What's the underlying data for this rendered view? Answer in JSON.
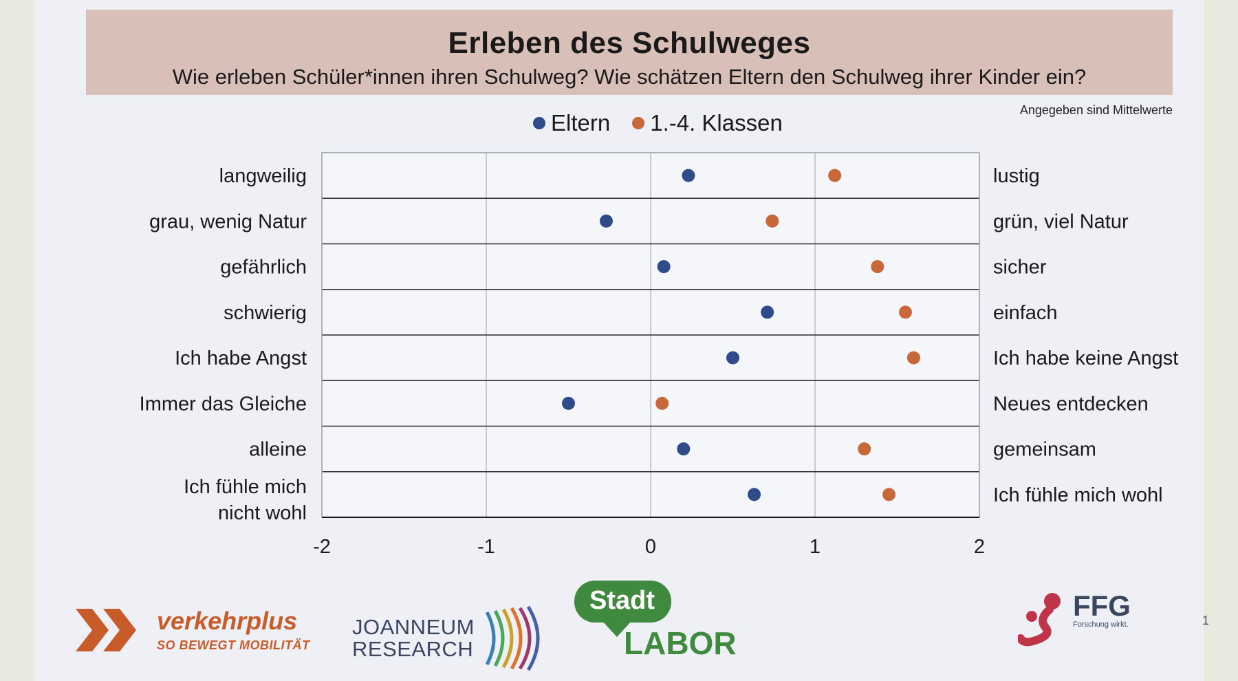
{
  "header": {
    "title": "Erleben des Schulweges",
    "subtitle": "Wie erleben Schüler*innen ihren Schulweg? Wie schätzen Eltern den Schulweg ihrer Kinder ein?"
  },
  "note": "Angegeben sind Mittelwerte",
  "colors": {
    "eltern": "#2f4b8a",
    "klassen": "#c8673a",
    "title_band": "#d8bfb7"
  },
  "chart_data": {
    "type": "scatter",
    "title": "Erleben des Schulweges",
    "xlim": [
      -2,
      2
    ],
    "x_ticks": [
      "-2",
      "-1",
      "0",
      "1",
      "2"
    ],
    "legend_position": "top-center",
    "categories_left": [
      "langweilig",
      "grau, wenig Natur",
      "gefährlich",
      "schwierig",
      "Ich habe Angst",
      "Immer das Gleiche",
      "alleine",
      "Ich fühle mich nicht wohl"
    ],
    "categories_right": [
      "lustig",
      "grün, viel Natur",
      "sicher",
      "einfach",
      "Ich habe keine Angst",
      "Neues entdecken",
      "gemeinsam",
      "Ich fühle mich wohl"
    ],
    "series": [
      {
        "name": "Eltern",
        "color": "#2f4b8a",
        "values": [
          0.23,
          -0.27,
          0.08,
          0.71,
          0.5,
          -0.5,
          0.2,
          0.63
        ]
      },
      {
        "name": "1.-4. Klassen",
        "color": "#c8673a",
        "values": [
          1.12,
          0.74,
          1.38,
          1.55,
          1.6,
          0.07,
          1.3,
          1.45
        ]
      }
    ]
  },
  "footer": {
    "verkehrplus_name": "verkehrplus",
    "verkehrplus_tag": "SO BEWEGT MOBILITÄT",
    "joanneum_line1": "JOANNEUM",
    "joanneum_line2": "RESEARCH",
    "stadt": "Stadt",
    "labor": "LABOR",
    "ffg_name": "FFG",
    "ffg_tag": "Forschung wirkt.",
    "page_number": "1"
  }
}
